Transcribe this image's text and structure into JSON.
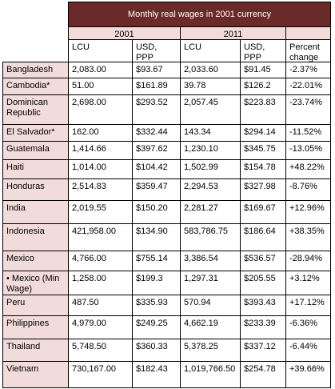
{
  "table": {
    "title": "Monthly real wages in 2001 currency",
    "years": [
      "2001",
      "2011"
    ],
    "subheaders": [
      "LCU",
      "USD, PPP",
      "LCU",
      "USD, PPP",
      "Percent change"
    ],
    "rows": [
      [
        "Bangladesh",
        "2,083.00",
        "$93.67",
        "2,033.60",
        "$91.45",
        "-2.37%"
      ],
      [
        "Cambodia*",
        "51.00",
        "$161.89",
        "39.78",
        "$126.2",
        "-22.01%"
      ],
      [
        "Dominican Republic",
        "2,698.00",
        "$293.52",
        "2,057.45",
        "$223.83",
        "-23.74%"
      ],
      [
        "El Salvador*",
        "162.00",
        "$332.44",
        "143.34",
        "$294.14",
        "-11.52%"
      ],
      [
        "Guatemala",
        "1,414.66",
        "$397.62",
        "1,230.10",
        "$345.75",
        "-13.05%"
      ],
      [
        "Haiti",
        "1,014.00",
        "$104.42",
        "1,502.99",
        "$154.78",
        "+48.22%"
      ],
      [
        "Honduras",
        "2,514.83",
        "$359.47",
        "2,294.53",
        "$327.98",
        "-8.76%"
      ],
      [
        "India",
        "2,019.55",
        "$150.20",
        "2,281.27",
        "$169.67",
        "+12.96%"
      ],
      [
        "Indonesia",
        "421,958.00",
        "$134.90",
        "583,786.75",
        "$186.64",
        "+38.35%"
      ],
      [
        "Mexico",
        "4,766.00",
        "$755.14",
        "3,386.54",
        "$536.57",
        "-28.94%"
      ],
      [
        "• Mexico (Min Wage)",
        "1,258.00",
        "$199.3",
        "1,297.31",
        "$205.55",
        "+3.12%"
      ],
      [
        "Peru",
        "487.50",
        "$335.93",
        "570.94",
        "$393.43",
        "+17.12%"
      ],
      [
        "Philippines",
        "4,979.00",
        "$249.25",
        "4,662.19",
        "$233.39",
        "-6.36%"
      ],
      [
        "Thailand",
        "5,748.50",
        "$360.33",
        "5,378.25",
        "$337.12",
        "-6.44%"
      ],
      [
        "Vietnam",
        "730,167.00",
        "$182.43",
        "1,019,766.50",
        "$254.78",
        "+39.66%"
      ]
    ]
  }
}
